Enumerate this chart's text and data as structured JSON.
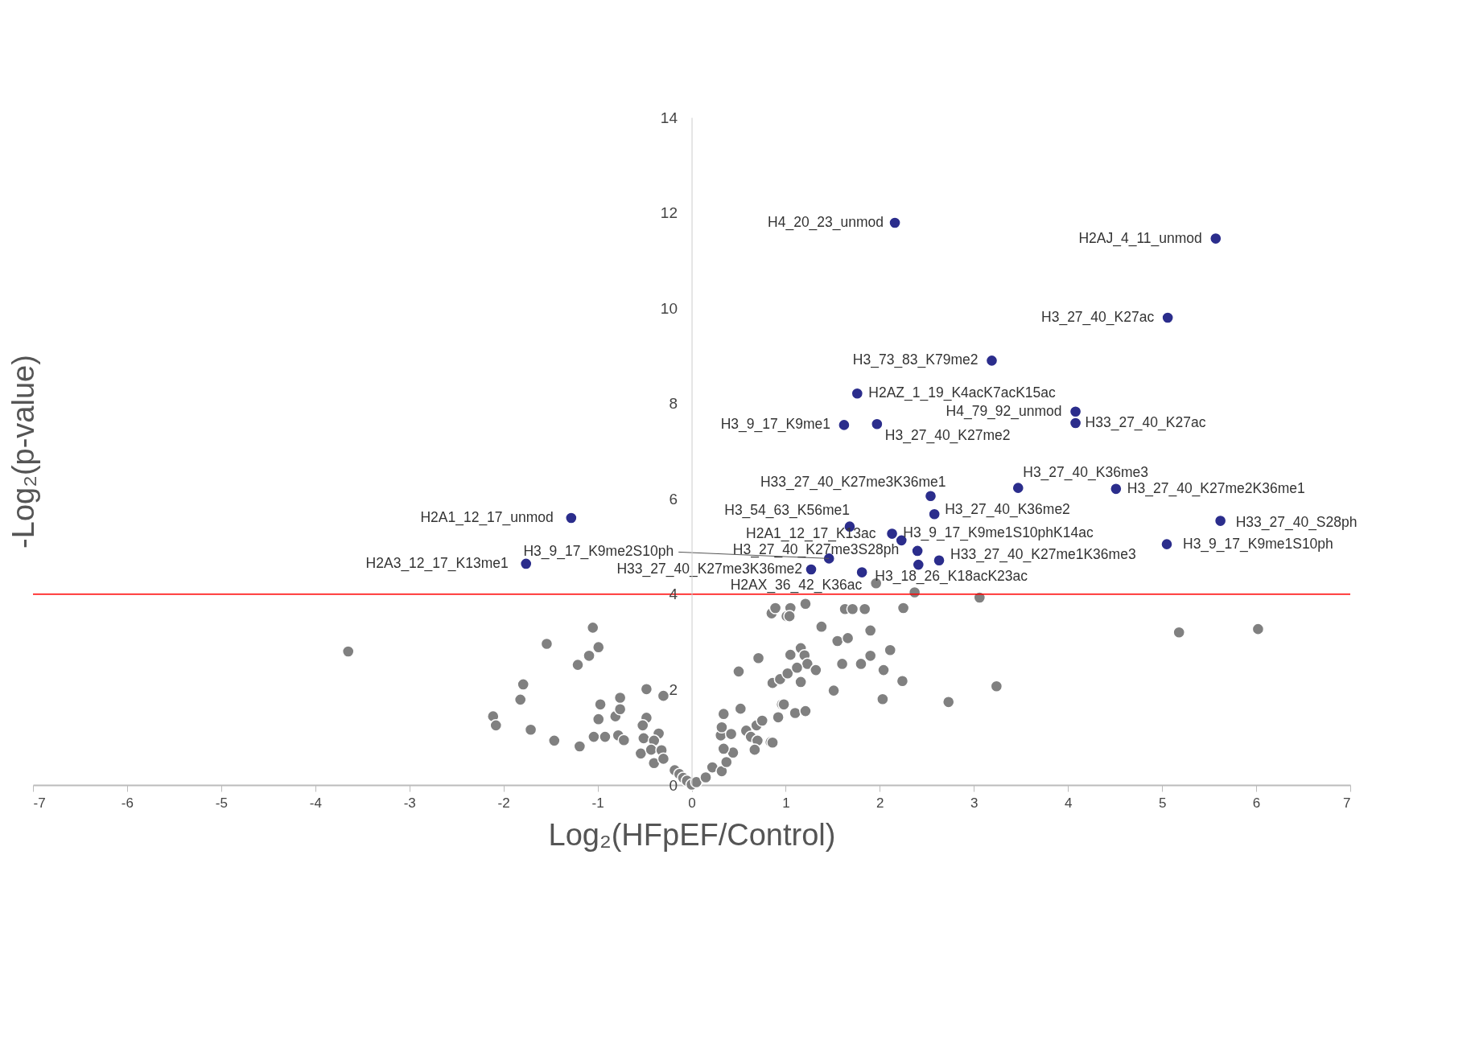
{
  "chart_data": {
    "type": "scatter",
    "xlabel": "Log₂(HFpEF/Control)",
    "ylabel": "-Log₂(p-value)",
    "xlim": [
      -7,
      7
    ],
    "xticks": [
      -7,
      -6,
      -5,
      -4,
      -3,
      -2,
      -1,
      0,
      1,
      2,
      3,
      4,
      5,
      6,
      7
    ],
    "ylim": [
      0,
      14
    ],
    "yticks": [
      0,
      2,
      4,
      6,
      8,
      10,
      12,
      14
    ],
    "grid": false,
    "marker": "circle",
    "ref_lines": [
      {
        "axis": "y",
        "value": 4,
        "color": "#ff0000"
      }
    ],
    "series": [
      {
        "color": "#2b2d8c",
        "x": [
          2.16,
          5.57,
          5.06,
          3.19,
          1.76,
          4.08,
          4.08,
          1.62,
          1.97,
          3.47,
          4.51,
          2.54,
          1.68,
          2.58,
          -1.28,
          5.62,
          2.13,
          2.23,
          5.05,
          2.4,
          1.46,
          1.27,
          2.63,
          1.81,
          2.41,
          -1.76
        ],
        "values": [
          11.79,
          11.46,
          9.8,
          8.9,
          8.21,
          7.83,
          7.59,
          7.55,
          7.57,
          6.23,
          6.21,
          6.06,
          5.42,
          5.68,
          5.6,
          5.54,
          5.27,
          5.13,
          5.05,
          4.91,
          4.75,
          4.52,
          4.71,
          4.46,
          4.62,
          4.64
        ]
      },
      {
        "color": "#808080",
        "x": [
          -1.05,
          -1.54,
          -0.99,
          -1.09,
          -1.21,
          -1.79,
          -1.82,
          -2.11,
          -2.08,
          -1.71,
          -1.46,
          -1.19,
          -1.04,
          -0.92,
          -0.97,
          -0.99,
          -0.81,
          -0.76,
          -0.76,
          -0.78,
          -0.72,
          -0.48,
          -0.3,
          -0.48,
          -0.52,
          -0.51,
          -0.54,
          -0.35,
          -0.4,
          -0.43,
          -0.32,
          -0.4,
          -0.3,
          -0.18,
          -0.13,
          -0.09,
          -0.05,
          0.0,
          0.05,
          0.15,
          0.22,
          0.32,
          0.37,
          0.44,
          0.34,
          0.31,
          0.32,
          0.34,
          0.42,
          0.52,
          0.5,
          0.71,
          0.86,
          0.94,
          1.02,
          0.58,
          0.63,
          0.69,
          0.75,
          0.7,
          0.67,
          0.84,
          0.92,
          0.96,
          0.85,
          0.89,
          1.01,
          1.21,
          1.05,
          1.04,
          1.63,
          1.71,
          1.84,
          2.25,
          2.37,
          1.96,
          3.06,
          1.38,
          1.55,
          1.66,
          1.9,
          2.11,
          1.9,
          1.8,
          1.6,
          2.04,
          1.05,
          1.16,
          1.2,
          1.23,
          1.32,
          1.12,
          1.16,
          1.51,
          2.24,
          2.03,
          2.73,
          3.24,
          0.98,
          1.1,
          1.21,
          0.86,
          -3.65,
          5.18,
          6.02
        ],
        "values": [
          3.3,
          2.96,
          2.89,
          2.71,
          2.52,
          2.11,
          1.79,
          1.44,
          1.25,
          1.16,
          0.93,
          0.81,
          1.01,
          1.01,
          1.69,
          1.38,
          1.44,
          1.83,
          1.59,
          1.04,
          0.94,
          2.01,
          1.87,
          1.41,
          1.25,
          0.98,
          0.66,
          1.08,
          0.93,
          0.74,
          0.73,
          0.46,
          0.55,
          0.31,
          0.23,
          0.15,
          0.09,
          0.01,
          0.06,
          0.16,
          0.37,
          0.29,
          0.48,
          0.68,
          0.76,
          1.04,
          1.21,
          1.49,
          1.07,
          1.6,
          2.38,
          2.66,
          2.14,
          2.22,
          2.34,
          1.14,
          1.01,
          1.25,
          1.35,
          0.93,
          0.74,
          0.9,
          1.42,
          1.69,
          3.6,
          3.71,
          3.54,
          3.8,
          3.71,
          3.54,
          3.69,
          3.69,
          3.69,
          3.71,
          4.04,
          4.23,
          3.93,
          3.32,
          3.02,
          3.08,
          3.24,
          2.83,
          2.71,
          2.54,
          2.54,
          2.41,
          2.73,
          2.87,
          2.72,
          2.54,
          2.41,
          2.46,
          2.16,
          1.98,
          2.18,
          1.8,
          1.74,
          2.07,
          1.69,
          1.51,
          1.55,
          0.89,
          2.8,
          3.2,
          3.27
        ]
      }
    ],
    "annotations": [
      {
        "text": "H4_20_23_unmod",
        "x": 2.16,
        "y": 11.79
      },
      {
        "text": "H2AJ_4_11_unmod",
        "x": 5.57,
        "y": 11.46
      },
      {
        "text": "H3_27_40_K27ac",
        "x": 5.06,
        "y": 9.8
      },
      {
        "text": "H3_73_83_K79me2",
        "x": 3.19,
        "y": 8.9
      },
      {
        "text": "H2AZ_1_19_K4acK7acK15ac",
        "x": 1.76,
        "y": 8.21
      },
      {
        "text": "H4_79_92_unmod",
        "x": 4.08,
        "y": 7.83
      },
      {
        "text": "H33_27_40_K27ac",
        "x": 4.08,
        "y": 7.59
      },
      {
        "text": "H3_9_17_K9me1",
        "x": 1.62,
        "y": 7.55
      },
      {
        "text": "H3_27_40_K27me2",
        "x": 1.97,
        "y": 7.57
      },
      {
        "text": "H3_27_40_K36me3",
        "x": 3.47,
        "y": 6.23
      },
      {
        "text": "H3_27_40_K27me2K36me1",
        "x": 4.51,
        "y": 6.21
      },
      {
        "text": "H33_27_40_K27me3K36me1",
        "x": 2.54,
        "y": 6.06
      },
      {
        "text": "H3_54_63_K56me1",
        "x": 1.68,
        "y": 5.42
      },
      {
        "text": "H3_27_40_K36me2",
        "x": 2.58,
        "y": 5.68
      },
      {
        "text": "H2A1_12_17_unmod",
        "x": -1.28,
        "y": 5.6
      },
      {
        "text": "H33_27_40_S28ph",
        "x": 5.62,
        "y": 5.54
      },
      {
        "text": "H2A1_12_17_K13ac",
        "x": 2.13,
        "y": 5.27
      },
      {
        "text": "H3_9_17_K9me1S10phK14ac",
        "x": 2.23,
        "y": 5.13
      },
      {
        "text": "H3_9_17_K9me1S10ph",
        "x": 5.05,
        "y": 5.05
      },
      {
        "text": "H3_27_40_K27me3S28ph",
        "x": 2.4,
        "y": 4.91
      },
      {
        "text": "H3_9_17_K9me2S10ph",
        "x": 1.46,
        "y": 4.75
      },
      {
        "text": "H33_27_40_K27me3K36me2",
        "x": 1.27,
        "y": 4.52
      },
      {
        "text": "H33_27_40_K27me1K36me3",
        "x": 2.63,
        "y": 4.71
      },
      {
        "text": "H2AX_36_42_K36ac",
        "x": 1.81,
        "y": 4.46
      },
      {
        "text": "H3_18_26_K18acK23ac",
        "x": 2.41,
        "y": 4.62
      },
      {
        "text": "H2A3_12_17_K13me1",
        "x": -1.76,
        "y": 4.64
      }
    ]
  }
}
